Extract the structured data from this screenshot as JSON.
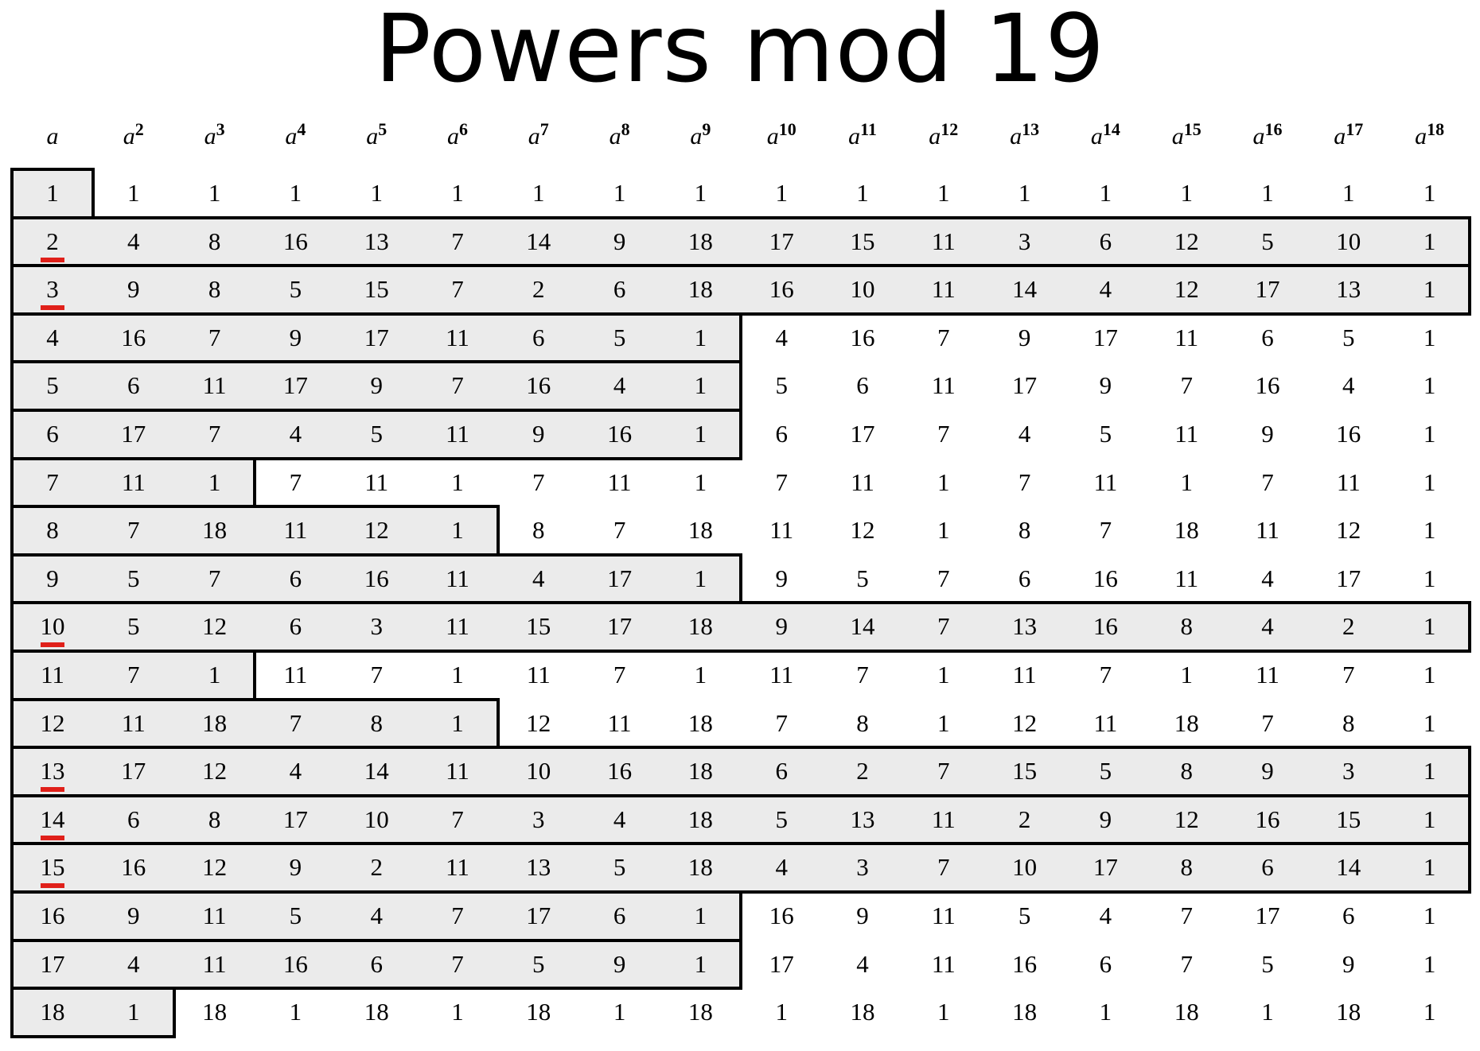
{
  "title": "Powers mod 19",
  "modulus": 19,
  "header_base": "a",
  "header_exponents": [
    "",
    "2",
    "3",
    "4",
    "5",
    "6",
    "7",
    "8",
    "9",
    "10",
    "11",
    "12",
    "13",
    "14",
    "15",
    "16",
    "17",
    "18"
  ],
  "rows": [
    [
      1,
      1,
      1,
      1,
      1,
      1,
      1,
      1,
      1,
      1,
      1,
      1,
      1,
      1,
      1,
      1,
      1,
      1
    ],
    [
      2,
      4,
      8,
      16,
      13,
      7,
      14,
      9,
      18,
      17,
      15,
      11,
      3,
      6,
      12,
      5,
      10,
      1
    ],
    [
      3,
      9,
      8,
      5,
      15,
      7,
      2,
      6,
      18,
      16,
      10,
      11,
      14,
      4,
      12,
      17,
      13,
      1
    ],
    [
      4,
      16,
      7,
      9,
      17,
      11,
      6,
      5,
      1,
      4,
      16,
      7,
      9,
      17,
      11,
      6,
      5,
      1
    ],
    [
      5,
      6,
      11,
      17,
      9,
      7,
      16,
      4,
      1,
      5,
      6,
      11,
      17,
      9,
      7,
      16,
      4,
      1
    ],
    [
      6,
      17,
      7,
      4,
      5,
      11,
      9,
      16,
      1,
      6,
      17,
      7,
      4,
      5,
      11,
      9,
      16,
      1
    ],
    [
      7,
      11,
      1,
      7,
      11,
      1,
      7,
      11,
      1,
      7,
      11,
      1,
      7,
      11,
      1,
      7,
      11,
      1
    ],
    [
      8,
      7,
      18,
      11,
      12,
      1,
      8,
      7,
      18,
      11,
      12,
      1,
      8,
      7,
      18,
      11,
      12,
      1
    ],
    [
      9,
      5,
      7,
      6,
      16,
      11,
      4,
      17,
      1,
      9,
      5,
      7,
      6,
      16,
      11,
      4,
      17,
      1
    ],
    [
      10,
      5,
      12,
      6,
      3,
      11,
      15,
      17,
      18,
      9,
      14,
      7,
      13,
      16,
      8,
      4,
      2,
      1
    ],
    [
      11,
      7,
      1,
      11,
      7,
      1,
      11,
      7,
      1,
      11,
      7,
      1,
      11,
      7,
      1,
      11,
      7,
      1
    ],
    [
      12,
      11,
      18,
      7,
      8,
      1,
      12,
      11,
      18,
      7,
      8,
      1,
      12,
      11,
      18,
      7,
      8,
      1
    ],
    [
      13,
      17,
      12,
      4,
      14,
      11,
      10,
      16,
      18,
      6,
      2,
      7,
      15,
      5,
      8,
      9,
      3,
      1
    ],
    [
      14,
      6,
      8,
      17,
      10,
      7,
      3,
      4,
      18,
      5,
      13,
      11,
      2,
      9,
      12,
      16,
      15,
      1
    ],
    [
      15,
      16,
      12,
      9,
      2,
      11,
      13,
      5,
      18,
      4,
      3,
      7,
      10,
      17,
      8,
      6,
      14,
      1
    ],
    [
      16,
      9,
      11,
      5,
      4,
      7,
      17,
      6,
      1,
      16,
      9,
      11,
      5,
      4,
      7,
      17,
      6,
      1
    ],
    [
      17,
      4,
      11,
      16,
      6,
      7,
      5,
      9,
      1,
      17,
      4,
      11,
      16,
      6,
      7,
      5,
      9,
      1
    ],
    [
      18,
      1,
      18,
      1,
      18,
      1,
      18,
      1,
      18,
      1,
      18,
      1,
      18,
      1,
      18,
      1,
      18,
      1
    ]
  ],
  "primitive_roots": [
    2,
    3,
    10,
    13,
    14,
    15
  ],
  "highlight_color": "#ebebeb",
  "underline_color": "#e0201a"
}
